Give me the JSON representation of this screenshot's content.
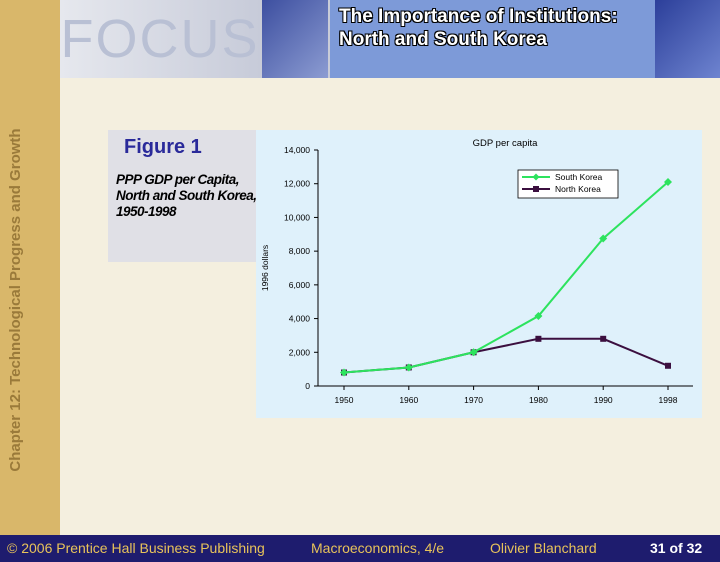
{
  "header": {
    "logo_text": "FOCUS",
    "title": "The Importance of Institutions: North and South Korea"
  },
  "sidebar": {
    "chapter": "Chapter 12: Technological Progress and Growth"
  },
  "figure": {
    "label": "Figure 1",
    "caption": "PPP GDP per Capita, North and South Korea, 1950-1998"
  },
  "chart_data": {
    "type": "line",
    "title": "GDP per capita",
    "ylabel": "1996 dollars",
    "xlabel": "",
    "x": [
      "1950",
      "1960",
      "1970",
      "1980",
      "1990",
      "1998"
    ],
    "ylim": [
      0,
      14000
    ],
    "yticks": [
      "0",
      "2,000",
      "4,000",
      "6,000",
      "8,000",
      "10,000",
      "12,000",
      "14,000"
    ],
    "legend_position": "top-right",
    "series": [
      {
        "name": "South Korea",
        "color": "#2de35e",
        "marker": "diamond",
        "values": [
          800,
          1100,
          2000,
          4150,
          8750,
          12100
        ]
      },
      {
        "name": "North Korea",
        "color": "#3b0f3f",
        "marker": "square",
        "values": [
          800,
          1100,
          2000,
          2800,
          2800,
          1200
        ]
      }
    ]
  },
  "footer": {
    "copyright": "© 2006 Prentice Hall Business Publishing",
    "book": "Macroeconomics, 4/e",
    "author": "Olivier Blanchard",
    "page": "31 of 32"
  }
}
